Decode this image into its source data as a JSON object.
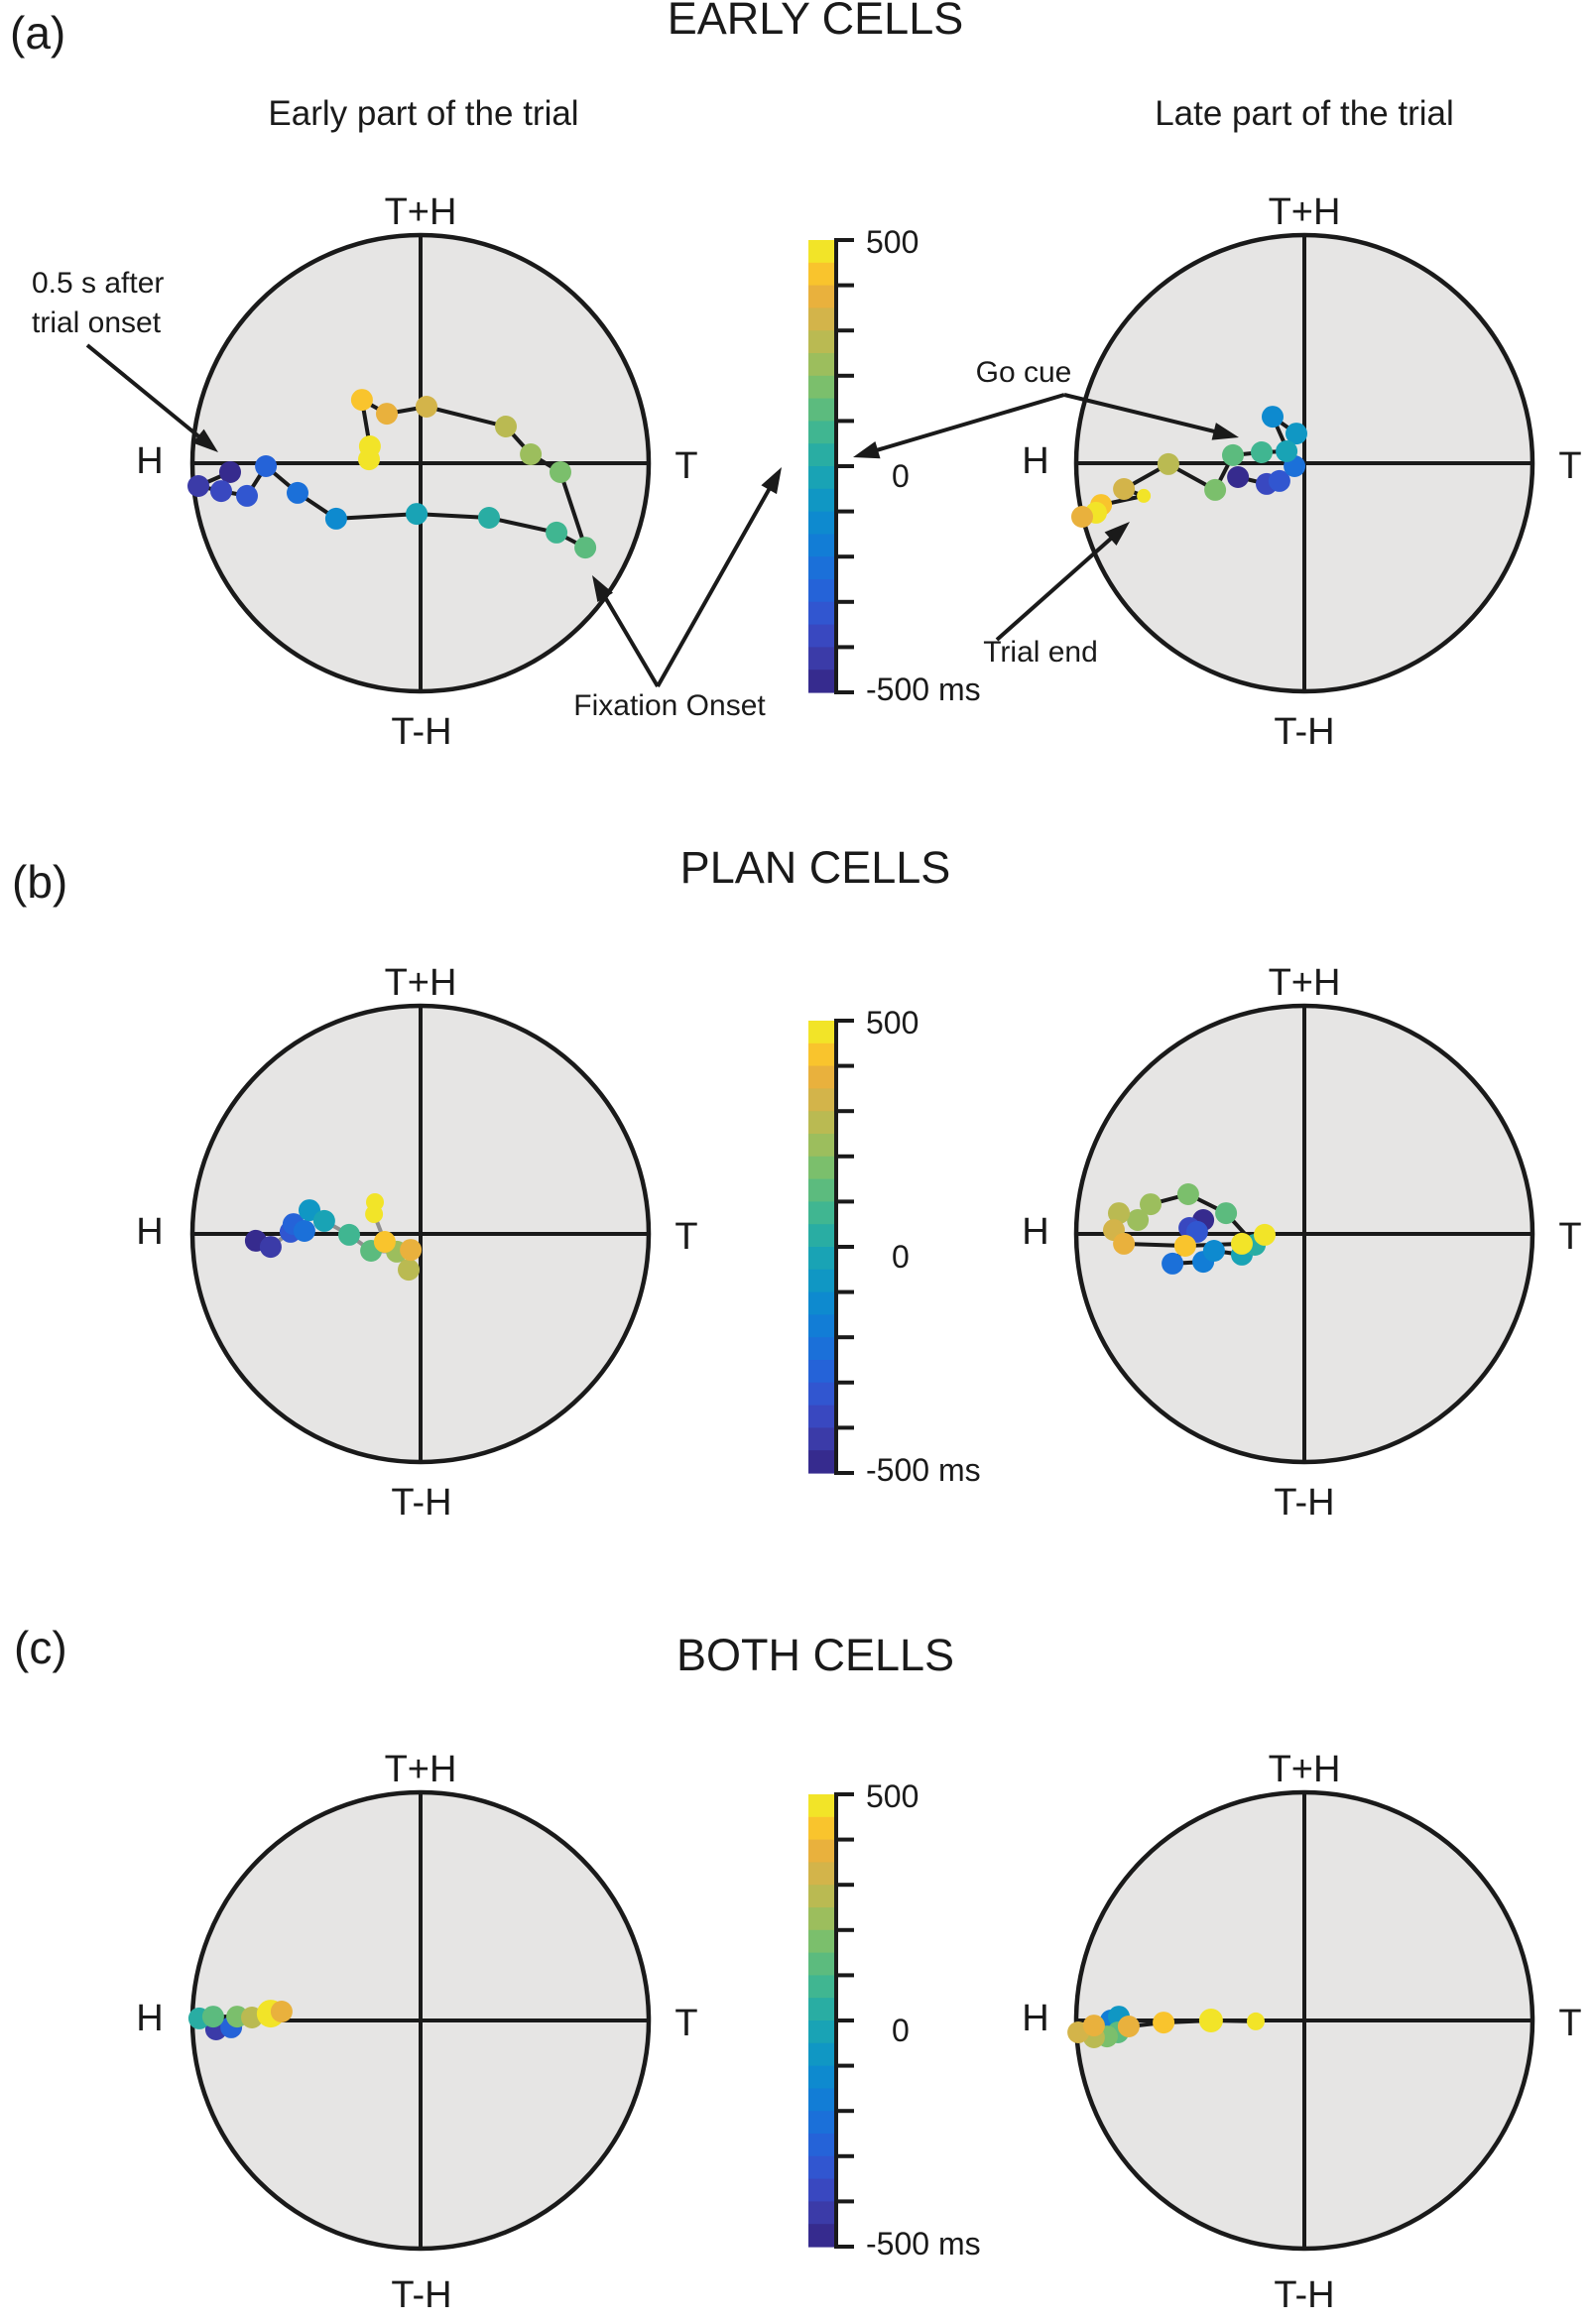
{
  "figure": {
    "panels": [
      {
        "label": "(a)",
        "title": "EARLY CELLS",
        "subtitle_left": "Early part of the trial",
        "subtitle_right": "Late part of the trial"
      },
      {
        "label": "(b)",
        "title": "PLAN CELLS"
      },
      {
        "label": "(c)",
        "title": "BOTH CELLS"
      }
    ],
    "axis_labels": {
      "top": "T+H",
      "right": "T",
      "bottom": "T-H",
      "left": "H"
    },
    "colorbar_labels": {
      "max": "500",
      "zero": "0",
      "min": "-500 ms"
    },
    "annotations": {
      "trial_onset": "0.5 s after\ntrial onset",
      "fixation_onset": "Fixation Onset",
      "go_cue": "Go cue",
      "trial_end": "Trial end"
    }
  },
  "chart_data": {
    "type": "scatter",
    "title": "State-space trajectories on H / T / T+H / T-H polar plots colored by time",
    "legend_position": "colorbar between left and right plots, one per panel row",
    "colorbar": {
      "orientation": "vertical",
      "min_ms": -500,
      "max_ms": 500,
      "tick_step_ms": 100,
      "tick_labels": [
        "500",
        "0",
        "-500 ms"
      ],
      "n_bands": 20
    },
    "palette_parula20": [
      "#362b8e",
      "#3b3ba8",
      "#3948c0",
      "#3156d0",
      "#2563d8",
      "#1b70d9",
      "#127dd6",
      "#0e8acf",
      "#1097c4",
      "#19a3b5",
      "#29ada3",
      "#40b691",
      "#5cbb7e",
      "#7bbf6c",
      "#9cbe5d",
      "#baba52",
      "#d3b44a",
      "#e9b13d",
      "#f9c42d",
      "#f2e428"
    ],
    "plot_bg": "#e6e5e4",
    "point_format": [
      "x (-1=H, +1=T)",
      "y (+1=T+H, -1=T-H)",
      "time_bin_0to19 (0=-500ms, 19=+500ms)",
      "radius_px (optional, default 11)"
    ],
    "plots": [
      {
        "panel": "EARLY CELLS",
        "position": "left",
        "line_color": "#1a1a1a",
        "points": [
          [
            -0.835,
            -0.039,
            0
          ],
          [
            -0.974,
            -0.1,
            1
          ],
          [
            -0.874,
            -0.122,
            2
          ],
          [
            -0.761,
            -0.143,
            3
          ],
          [
            -0.678,
            -0.013,
            4
          ],
          [
            -0.539,
            -0.13,
            5
          ],
          [
            -0.37,
            -0.243,
            7
          ],
          [
            -0.017,
            -0.222,
            9
          ],
          [
            0.3,
            -0.239,
            10
          ],
          [
            0.596,
            -0.304,
            11
          ],
          [
            0.722,
            -0.37,
            12
          ],
          [
            0.613,
            -0.039,
            13
          ],
          [
            0.483,
            0.039,
            14
          ],
          [
            0.374,
            0.161,
            15
          ],
          [
            0.026,
            0.248,
            16
          ],
          [
            -0.148,
            0.217,
            17
          ],
          [
            -0.257,
            0.278,
            18
          ],
          [
            -0.222,
            0.074,
            19
          ],
          [
            -0.226,
            0.017,
            19
          ]
        ]
      },
      {
        "panel": "EARLY CELLS",
        "position": "right",
        "line_color": "#1a1a1a",
        "points": [
          [
            -0.291,
            -0.061,
            0
          ],
          [
            -0.165,
            -0.091,
            2
          ],
          [
            -0.109,
            -0.078,
            3
          ],
          [
            -0.043,
            -0.013,
            5
          ],
          [
            -0.139,
            0.204,
            7
          ],
          [
            -0.035,
            0.13,
            8
          ],
          [
            -0.078,
            0.052,
            9
          ],
          [
            -0.187,
            0.048,
            11
          ],
          [
            -0.313,
            0.035,
            12
          ],
          [
            -0.391,
            -0.117,
            13
          ],
          [
            -0.596,
            -0.004,
            15
          ],
          [
            -0.791,
            -0.113,
            16
          ],
          [
            -0.704,
            -0.143,
            19,
            7
          ],
          [
            -0.891,
            -0.183,
            18
          ],
          [
            -0.913,
            -0.217,
            19
          ],
          [
            -0.974,
            -0.235,
            17
          ]
        ]
      },
      {
        "panel": "PLAN CELLS",
        "position": "left",
        "line_color": "#8f8f8f",
        "points": [
          [
            -0.722,
            -0.03,
            0
          ],
          [
            -0.657,
            -0.057,
            1
          ],
          [
            -0.57,
            0.009,
            3
          ],
          [
            -0.557,
            0.043,
            4
          ],
          [
            -0.509,
            0.013,
            5
          ],
          [
            -0.487,
            0.104,
            8
          ],
          [
            -0.422,
            0.057,
            9
          ],
          [
            -0.313,
            -0.004,
            11
          ],
          [
            -0.217,
            -0.074,
            12
          ],
          [
            -0.104,
            -0.078,
            14
          ],
          [
            -0.052,
            -0.157,
            15
          ],
          [
            -0.043,
            -0.07,
            17
          ],
          [
            -0.157,
            -0.035,
            18
          ],
          [
            -0.204,
            0.087,
            19,
            9
          ],
          [
            -0.2,
            0.139,
            19,
            9
          ]
        ]
      },
      {
        "panel": "PLAN CELLS",
        "position": "right",
        "line_color": "#1a1a1a",
        "points": [
          [
            -0.443,
            0.061,
            0
          ],
          [
            -0.504,
            0.026,
            2
          ],
          [
            -0.47,
            0.009,
            3
          ],
          [
            -0.578,
            -0.13,
            5
          ],
          [
            -0.443,
            -0.122,
            6
          ],
          [
            -0.396,
            -0.074,
            7
          ],
          [
            -0.274,
            -0.091,
            9
          ],
          [
            -0.217,
            -0.048,
            10
          ],
          [
            -0.343,
            0.091,
            12
          ],
          [
            -0.509,
            0.174,
            13
          ],
          [
            -0.674,
            0.13,
            14
          ],
          [
            -0.73,
            0.061,
            14
          ],
          [
            -0.813,
            0.091,
            15
          ],
          [
            -0.835,
            0.017,
            16
          ],
          [
            -0.791,
            -0.043,
            17
          ],
          [
            -0.522,
            -0.052,
            18
          ],
          [
            -0.274,
            -0.043,
            19
          ],
          [
            -0.174,
            -0.004,
            19
          ]
        ]
      },
      {
        "panel": "BOTH CELLS",
        "position": "left",
        "line_color": "#1a1a1a",
        "points": [
          [
            -0.896,
            -0.039,
            1
          ],
          [
            -0.83,
            -0.03,
            4
          ],
          [
            -0.97,
            0.009,
            10
          ],
          [
            -0.909,
            0.017,
            12
          ],
          [
            -0.804,
            0.017,
            13
          ],
          [
            -0.739,
            0.013,
            15
          ],
          [
            -0.657,
            0.03,
            19,
            14
          ],
          [
            -0.609,
            0.039,
            17
          ]
        ]
      },
      {
        "panel": "BOTH CELLS",
        "position": "right",
        "line_color": "#1a1a1a",
        "points": [
          [
            -0.848,
            0.0,
            6
          ],
          [
            -0.813,
            0.017,
            8
          ],
          [
            -0.817,
            -0.052,
            12
          ],
          [
            -0.865,
            -0.07,
            13
          ],
          [
            -0.922,
            -0.074,
            15
          ],
          [
            -0.991,
            -0.052,
            16
          ],
          [
            -0.922,
            -0.022,
            17
          ],
          [
            -0.77,
            -0.026,
            17
          ],
          [
            -0.617,
            -0.009,
            18
          ],
          [
            -0.409,
            0.0,
            19,
            12
          ],
          [
            -0.213,
            -0.004,
            19,
            9
          ]
        ]
      }
    ]
  }
}
